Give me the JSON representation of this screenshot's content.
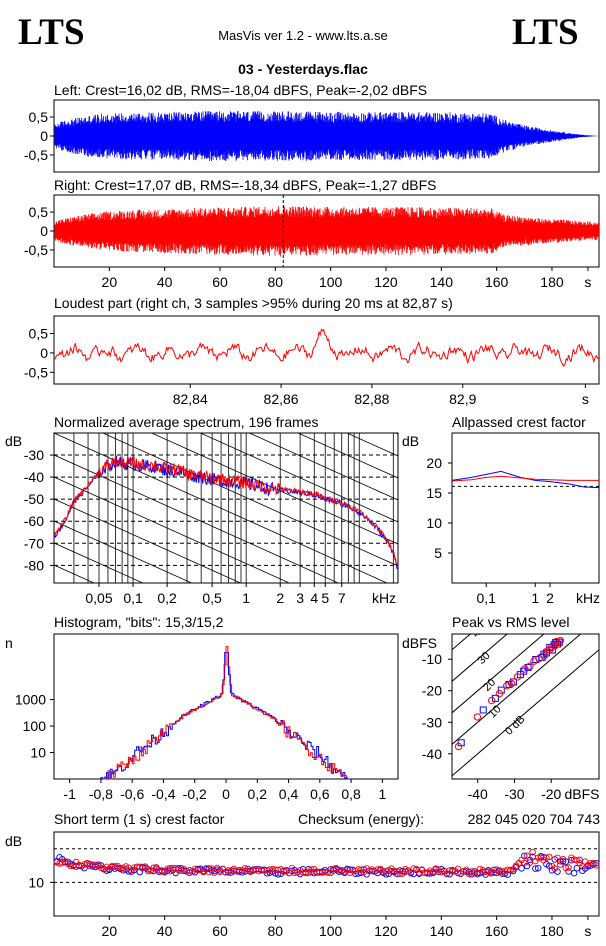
{
  "header": {
    "logo_left": "LTS",
    "logo_right": "LTS",
    "app_title": "MasVis ver 1.2 - www.lts.a.se",
    "file_name": "03 - Yesterdays.flac"
  },
  "colors": {
    "left": "#0000ff",
    "right": "#ff0000",
    "grid": "#000000",
    "bg": "#ffffff"
  },
  "chart_data": [
    {
      "id": "left_waveform",
      "type": "area",
      "title": "Left: Crest=16,02 dB, RMS=-18,04 dBFS, Peak=-2,02 dBFS",
      "y_ticks": [
        "0,5",
        "0",
        "-0,5"
      ],
      "y_values": [
        0.5,
        0,
        -0.5
      ],
      "ylim": [
        -0.95,
        0.95
      ],
      "xlim": [
        0,
        197
      ],
      "envelope": {
        "x": [
          0,
          3,
          8,
          15,
          25,
          40,
          55,
          70,
          80,
          90,
          100,
          110,
          120,
          130,
          140,
          150,
          158,
          163,
          170,
          178,
          185,
          190,
          197
        ],
        "y": [
          0.3,
          0.4,
          0.48,
          0.58,
          0.62,
          0.63,
          0.66,
          0.66,
          0.65,
          0.66,
          0.64,
          0.63,
          0.64,
          0.64,
          0.63,
          0.62,
          0.6,
          0.42,
          0.28,
          0.18,
          0.1,
          0.04,
          0.0
        ]
      }
    },
    {
      "id": "right_waveform",
      "type": "area",
      "title": "Right: Crest=17,07 dB, RMS=-18,34 dBFS, Peak=-1,27 dBFS",
      "y_ticks": [
        "0,5",
        "0",
        "-0,5"
      ],
      "y_values": [
        0.5,
        0,
        -0.5
      ],
      "ylim": [
        -0.95,
        0.95
      ],
      "xlim": [
        0,
        197
      ],
      "x_ticks": [
        "20",
        "40",
        "60",
        "80",
        "100",
        "120",
        "140",
        "160",
        "180",
        "s"
      ],
      "x_tick_values": [
        20,
        40,
        60,
        80,
        100,
        120,
        140,
        160,
        180,
        193
      ],
      "marker_x": 82.87,
      "envelope": {
        "x": [
          0,
          3,
          8,
          15,
          25,
          40,
          55,
          70,
          80,
          90,
          100,
          110,
          120,
          130,
          140,
          150,
          158,
          163,
          170,
          178,
          185,
          190,
          197
        ],
        "y": [
          0.25,
          0.32,
          0.4,
          0.48,
          0.55,
          0.58,
          0.62,
          0.64,
          0.68,
          0.66,
          0.64,
          0.64,
          0.63,
          0.64,
          0.62,
          0.62,
          0.6,
          0.42,
          0.38,
          0.32,
          0.3,
          0.26,
          0.24
        ]
      }
    },
    {
      "id": "loudest_part",
      "type": "line",
      "title": "Loudest part (right ch, 3 samples >95% during 20 ms at 82,87 s)",
      "y_ticks": [
        "0,5",
        "0",
        "-0,5"
      ],
      "y_values": [
        0.5,
        0,
        -0.5
      ],
      "ylim": [
        -0.8,
        0.95
      ],
      "xlim": [
        82.81,
        82.93
      ],
      "x_ticks": [
        "82,84",
        "82,86",
        "82,88",
        "82,9",
        "s"
      ],
      "x_tick_values": [
        82.84,
        82.86,
        82.88,
        82.9,
        82.927
      ]
    },
    {
      "id": "spectrum",
      "type": "line",
      "title": "Normalized average spectrum, 196 frames",
      "ylabel": "dB",
      "y_ticks": [
        "-30",
        "-40",
        "-50",
        "-60",
        "-70",
        "-80"
      ],
      "y_values": [
        -30,
        -40,
        -50,
        -60,
        -70,
        -80
      ],
      "ylim": [
        -88,
        -20
      ],
      "xlim": [
        0.02,
        22
      ],
      "x_scale": "log",
      "xlabel": "kHz",
      "x_ticks": [
        "0,05",
        "0,1",
        "0,2",
        "0,5",
        "1",
        "2",
        "3",
        "4",
        "5",
        "7"
      ],
      "x_tick_values": [
        0.05,
        0.1,
        0.2,
        0.5,
        1,
        2,
        3,
        4,
        5,
        7
      ],
      "series": [
        {
          "x": [
            0.02,
            0.025,
            0.03,
            0.04,
            0.05,
            0.06,
            0.07,
            0.08,
            0.1,
            0.12,
            0.15,
            0.2,
            0.25,
            0.3,
            0.4,
            0.5,
            0.7,
            1,
            1.5,
            2,
            3,
            4,
            5,
            7,
            10,
            13,
            16,
            18,
            20,
            22
          ],
          "values": [
            -67,
            -60,
            -51,
            -44,
            -38,
            -35,
            -33,
            -34,
            -34,
            -35,
            -35,
            -37,
            -37,
            -39,
            -40,
            -41,
            -42,
            -43,
            -45,
            -46,
            -47,
            -48,
            -50,
            -52,
            -56,
            -61,
            -66,
            -70,
            -74,
            -82
          ]
        }
      ]
    },
    {
      "id": "allpassed_crest",
      "type": "line",
      "title": "Allpassed crest factor",
      "ylabel": "dB",
      "y_ticks": [
        "20",
        "15",
        "10",
        "5"
      ],
      "y_values": [
        20,
        15,
        10,
        5
      ],
      "ylim": [
        0,
        25
      ],
      "x_scale": "log",
      "xlim": [
        0.02,
        20
      ],
      "xlabel": "kHz",
      "x_ticks": [
        "0,1",
        "1",
        "2"
      ],
      "x_tick_values": [
        0.1,
        1,
        2
      ],
      "dashed_level": 16.1,
      "series": [
        {
          "name": "L",
          "x": [
            0.02,
            0.05,
            0.1,
            0.2,
            0.5,
            1,
            2,
            5,
            10,
            20
          ],
          "values": [
            17.1,
            17.6,
            18.1,
            18.6,
            17.6,
            17.1,
            16.9,
            16.5,
            16.0,
            15.9
          ]
        },
        {
          "name": "R",
          "x": [
            0.02,
            0.05,
            0.1,
            0.2,
            0.5,
            1,
            2,
            5,
            10,
            20
          ],
          "values": [
            17.0,
            17.2,
            17.6,
            17.8,
            17.5,
            17.3,
            17.2,
            17.1,
            17.1,
            17.1
          ]
        }
      ]
    },
    {
      "id": "histogram",
      "type": "line",
      "title": "Histogram, \"bits\": 15,3/15,2",
      "ylabel": "n",
      "y_ticks": [
        "1000",
        "100",
        "10"
      ],
      "y_values": [
        1000,
        100,
        10
      ],
      "y_scale": "log",
      "ylim": [
        1,
        300000
      ],
      "xlim": [
        -1.1,
        1.1
      ],
      "x_ticks": [
        "-1",
        "-0,8",
        "-0,6",
        "-0,4",
        "-0,2",
        "0",
        "0,2",
        "0,4",
        "0,6",
        "0,8",
        "1"
      ],
      "x_tick_values": [
        -1,
        -0.8,
        -0.6,
        -0.4,
        -0.2,
        0,
        0.2,
        0.4,
        0.6,
        0.8,
        1
      ],
      "series": [
        {
          "name": "L",
          "x": [
            -0.8,
            -0.7,
            -0.6,
            -0.5,
            -0.4,
            -0.3,
            -0.2,
            -0.1,
            -0.03,
            0,
            0.03,
            0.1,
            0.2,
            0.3,
            0.4,
            0.5,
            0.6,
            0.7,
            0.8
          ],
          "values": [
            1,
            2,
            8,
            20,
            60,
            200,
            450,
            900,
            1600,
            60000,
            1600,
            900,
            450,
            200,
            60,
            20,
            8,
            2,
            1
          ]
        },
        {
          "name": "R",
          "x": [
            -0.78,
            -0.7,
            -0.6,
            -0.5,
            -0.4,
            -0.3,
            -0.2,
            -0.1,
            -0.03,
            0,
            0.03,
            0.1,
            0.2,
            0.3,
            0.4,
            0.5,
            0.6,
            0.7,
            0.78
          ],
          "values": [
            1,
            2,
            6,
            18,
            55,
            190,
            430,
            880,
            1550,
            100000,
            1550,
            880,
            430,
            190,
            55,
            18,
            6,
            2,
            1
          ]
        }
      ]
    },
    {
      "id": "peak_vs_rms",
      "type": "scatter",
      "title": "Peak vs RMS level",
      "ylabel": "dBFS",
      "xlabel": "dBFS",
      "y_ticks": [
        "-10",
        "-20",
        "-30",
        "-40"
      ],
      "y_values": [
        -10,
        -20,
        -30,
        -40
      ],
      "x_ticks": [
        "-40",
        "-30",
        "-20"
      ],
      "x_tick_values": [
        -40,
        -30,
        -20
      ],
      "xlim": [
        -47,
        -7
      ],
      "ylim": [
        -48,
        -2
      ],
      "crest_lines": [
        "40",
        "30",
        "20",
        "10",
        "0 dB"
      ],
      "crest_values": [
        40,
        30,
        20,
        10,
        0
      ],
      "series": [
        {
          "name": "L",
          "x": [
            -44.5,
            -38.5,
            -35.2,
            -33.6,
            -31.5,
            -30.3,
            -28.4,
            -27.5,
            -26.3,
            -24.2,
            -22.5,
            -22.0,
            -21.3,
            -20.4,
            -19.7,
            -19.2,
            -18.8,
            -18.3,
            -17.8
          ],
          "values": [
            -36.5,
            -26.1,
            -22.4,
            -19.8,
            -18.0,
            -17.2,
            -14.9,
            -13.8,
            -12.6,
            -10.1,
            -9.4,
            -8.4,
            -8.0,
            -6.3,
            -7.1,
            -5.4,
            -4.7,
            -5.2,
            -4.6
          ]
        },
        {
          "name": "R",
          "x": [
            -45.2,
            -40.1,
            -36.2,
            -34.1,
            -32.1,
            -30.8,
            -29.2,
            -27.2,
            -25.8,
            -24.7,
            -23.3,
            -21.9,
            -21.1,
            -20.4,
            -19.8,
            -19.1,
            -18.6,
            -17.9,
            -17.5
          ],
          "values": [
            -37.7,
            -28.3,
            -23.1,
            -20.9,
            -18.4,
            -17.7,
            -15.6,
            -13.1,
            -12.2,
            -10.6,
            -9.8,
            -8.9,
            -7.4,
            -7.0,
            -6.0,
            -5.8,
            -4.4,
            -5.1,
            -4.1
          ]
        }
      ]
    },
    {
      "id": "short_term_crest",
      "type": "scatter",
      "title": "Short term (1 s) crest factor",
      "ylabel": "dB",
      "y_ticks": [
        "10"
      ],
      "y_values": [
        10
      ],
      "ylim": [
        0,
        25
      ],
      "dashed_levels": [
        10,
        20
      ],
      "xlim": [
        0,
        197
      ],
      "x_ticks": [
        "20",
        "40",
        "60",
        "80",
        "100",
        "120",
        "140",
        "160",
        "180",
        "s"
      ],
      "x_tick_values": [
        20,
        40,
        60,
        80,
        100,
        120,
        140,
        160,
        180,
        193
      ],
      "left_level": {
        "x": [
          0,
          5,
          10,
          20,
          40,
          60,
          80,
          100,
          120,
          140,
          160,
          165,
          170,
          175,
          180,
          190,
          197
        ],
        "values": [
          17.3,
          16.2,
          15.0,
          14.2,
          13.6,
          13.4,
          13.1,
          13.3,
          13.1,
          13.2,
          13.0,
          13.1,
          16.8,
          16.0,
          15.4,
          14.8,
          15.2
        ]
      },
      "right_level": {
        "x": [
          0,
          5,
          10,
          20,
          40,
          60,
          80,
          100,
          120,
          140,
          160,
          165,
          170,
          175,
          180,
          190,
          197
        ],
        "values": [
          16.8,
          15.6,
          15.2,
          14.4,
          13.8,
          13.6,
          13.4,
          13.5,
          13.3,
          13.4,
          13.2,
          13.4,
          17.4,
          16.5,
          15.8,
          15.3,
          15.6
        ]
      }
    }
  ],
  "checksum": {
    "label": "Checksum (energy):",
    "value": "282 045 020 704 743"
  }
}
